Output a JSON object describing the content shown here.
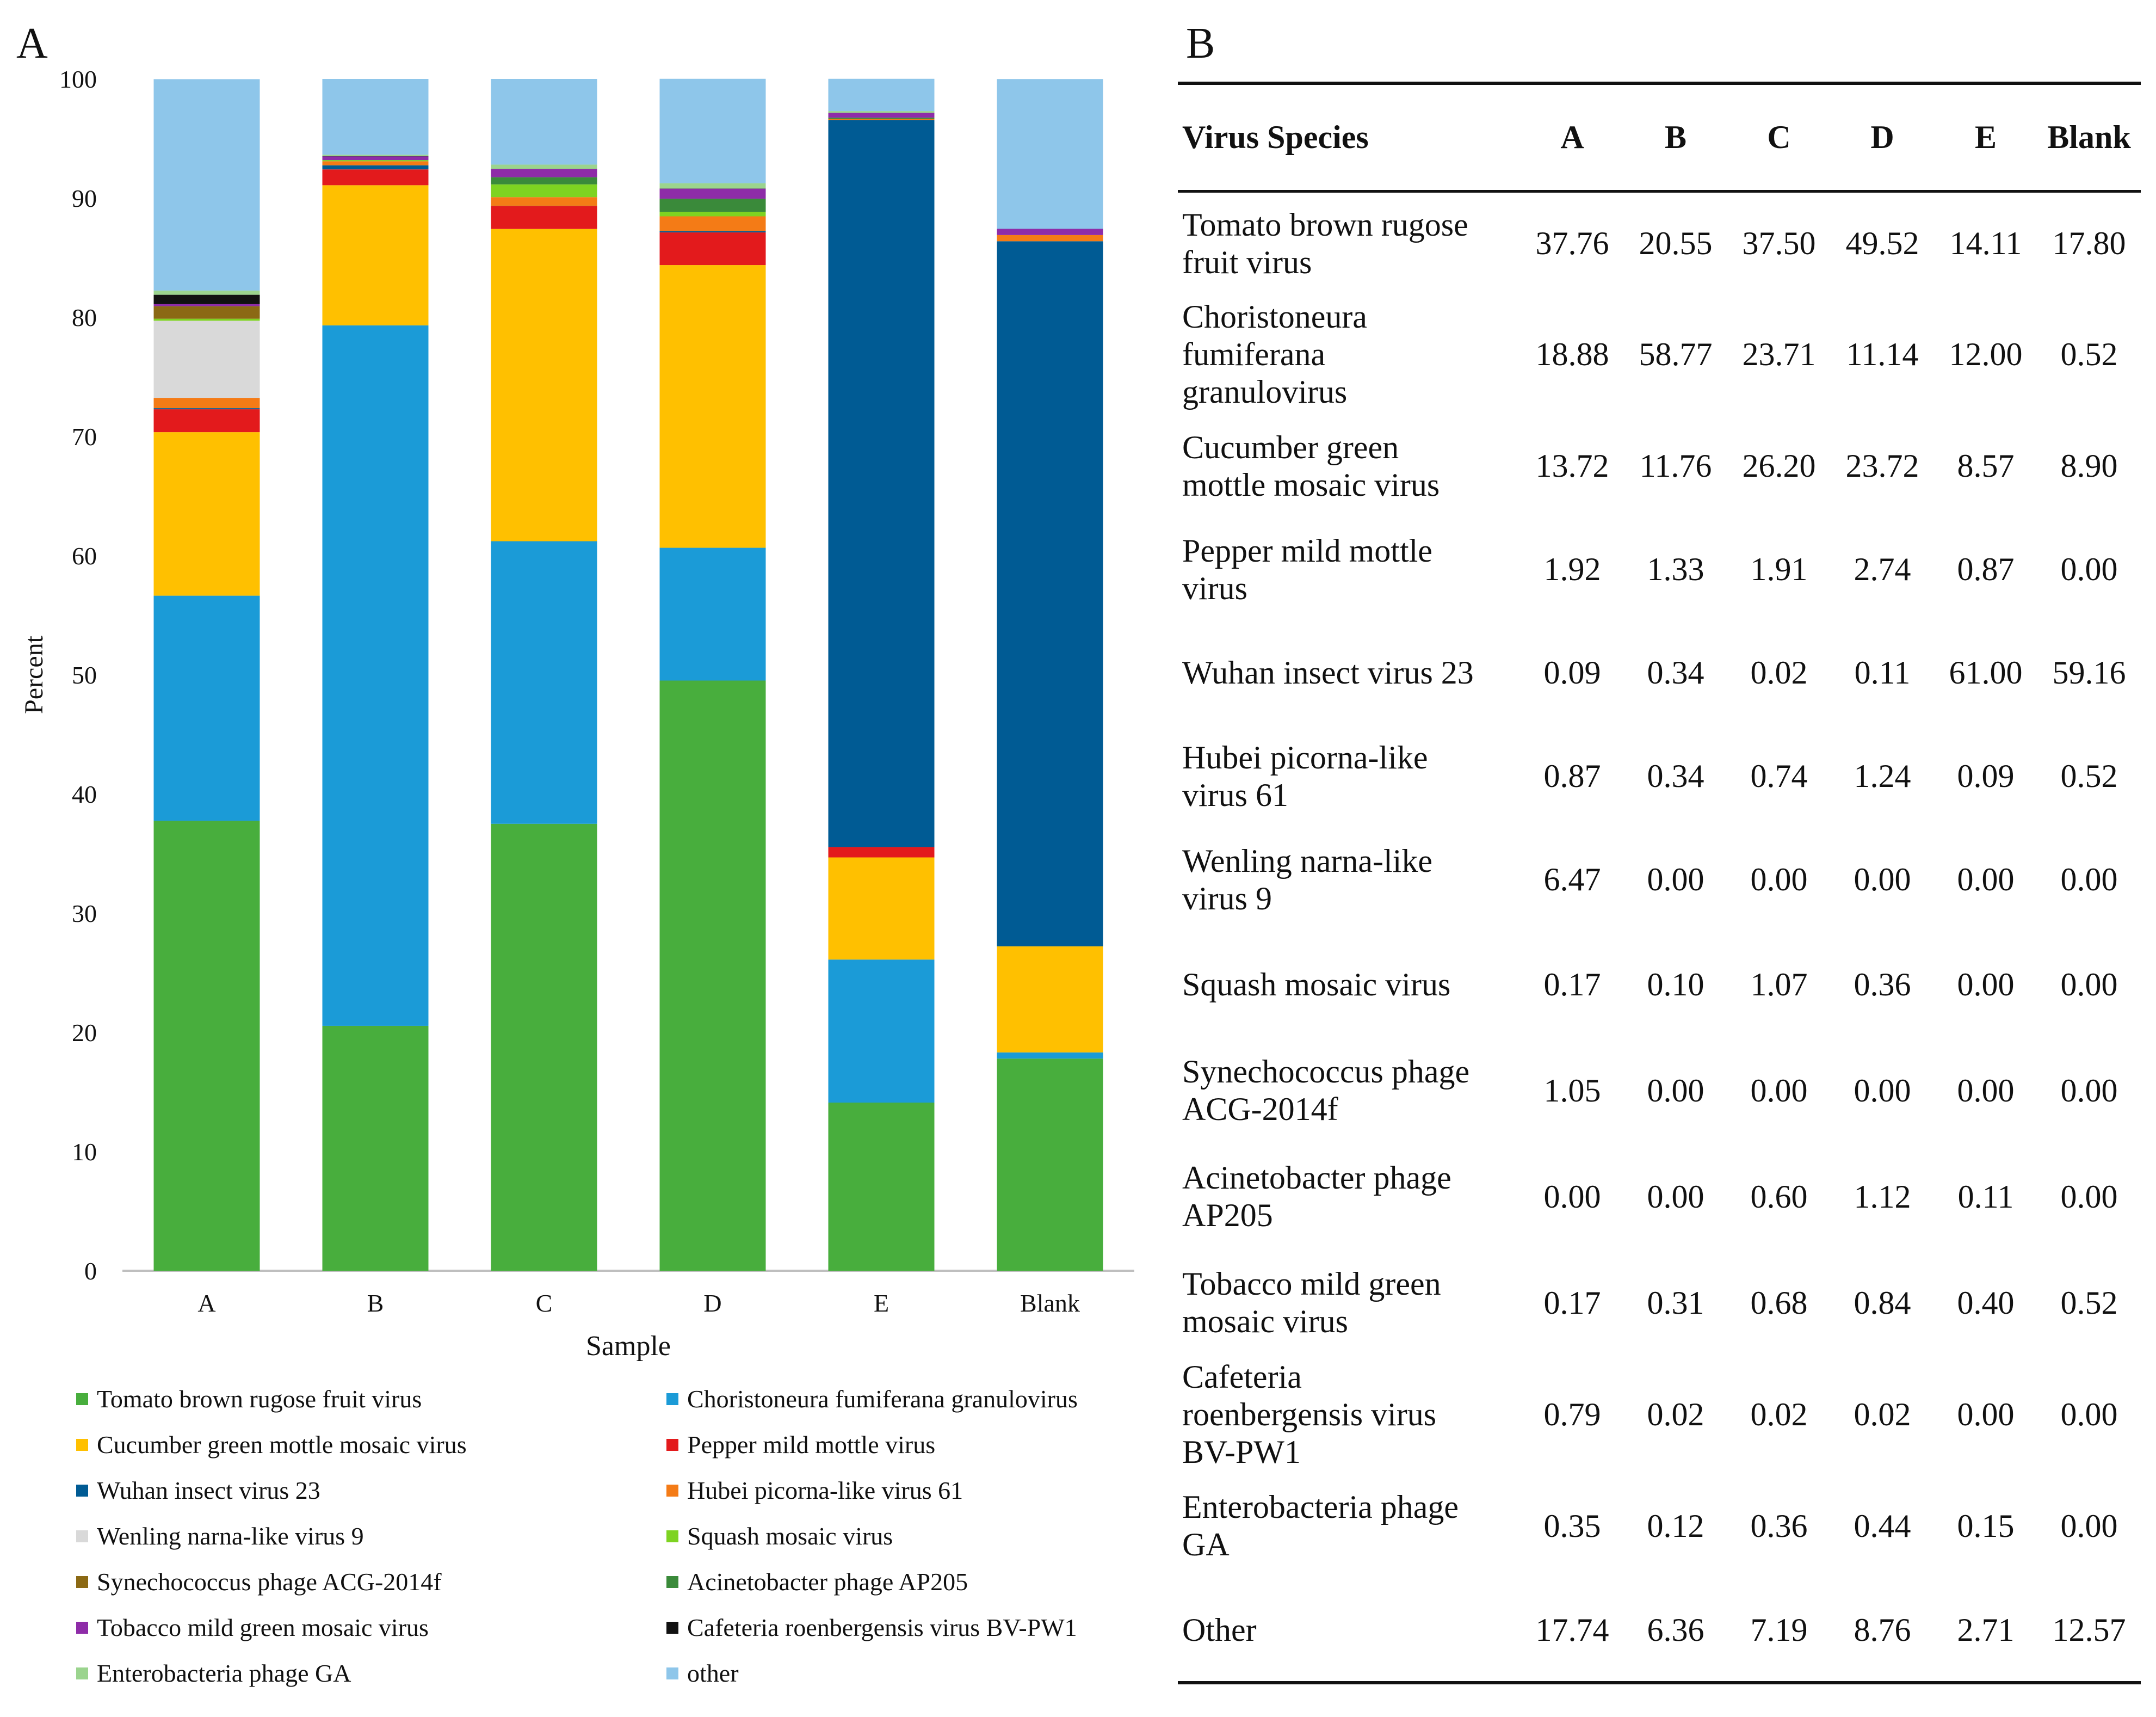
{
  "panel_a_label": "A",
  "panel_b_label": "B",
  "chart_data": {
    "type": "bar",
    "stacked": true,
    "title": "",
    "xlabel": "Sample",
    "ylabel": "Percent",
    "ylim": [
      0,
      100
    ],
    "yticks": [
      "0",
      "10",
      "20",
      "30",
      "40",
      "50",
      "60",
      "70",
      "80",
      "90",
      "100"
    ],
    "categories": [
      "A",
      "B",
      "C",
      "D",
      "E",
      "Blank"
    ],
    "series": [
      {
        "name": "Tomato brown rugose fruit virus",
        "color": "#48ae3d",
        "values": [
          37.76,
          20.55,
          37.5,
          49.52,
          14.11,
          17.8
        ]
      },
      {
        "name": "Choristoneura fumiferana granulovirus",
        "color": "#1b9bd7",
        "values": [
          18.88,
          58.77,
          23.71,
          11.14,
          12.0,
          0.52
        ]
      },
      {
        "name": "Cucumber green mottle mosaic virus",
        "color": "#ffc000",
        "values": [
          13.72,
          11.76,
          26.2,
          23.72,
          8.57,
          8.9
        ]
      },
      {
        "name": "Pepper mild mottle virus",
        "color": "#e31a1c",
        "values": [
          1.92,
          1.33,
          1.91,
          2.74,
          0.87,
          0.0
        ]
      },
      {
        "name": "Wuhan insect virus 23",
        "color": "#005b94",
        "values": [
          0.09,
          0.34,
          0.02,
          0.11,
          61.0,
          59.16
        ]
      },
      {
        "name": "Hubei picorna-like virus 61",
        "color": "#f47b16",
        "values": [
          0.87,
          0.34,
          0.74,
          1.24,
          0.09,
          0.52
        ]
      },
      {
        "name": "Wenling narna-like virus 9",
        "color": "#d9d9d9",
        "values": [
          6.47,
          0.0,
          0.0,
          0.0,
          0.0,
          0.0
        ]
      },
      {
        "name": "Squash mosaic virus",
        "color": "#7ed321",
        "values": [
          0.17,
          0.1,
          1.07,
          0.36,
          0.0,
          0.0
        ]
      },
      {
        "name": "Synechococcus phage ACG-2014f",
        "color": "#8b6914",
        "values": [
          1.05,
          0.0,
          0.0,
          0.0,
          0.0,
          0.0
        ]
      },
      {
        "name": "Acinetobacter phage AP205",
        "color": "#3a8a3a",
        "values": [
          0.0,
          0.0,
          0.6,
          1.12,
          0.11,
          0.0
        ]
      },
      {
        "name": "Tobacco mild green mosaic virus",
        "color": "#8e2ca8",
        "values": [
          0.17,
          0.31,
          0.68,
          0.84,
          0.4,
          0.52
        ]
      },
      {
        "name": "Cafeteria roenbergensis virus BV-PW1",
        "color": "#111111",
        "values": [
          0.79,
          0.02,
          0.02,
          0.02,
          0.0,
          0.0
        ]
      },
      {
        "name": "Enterobacteria phage GA",
        "color": "#9bd48e",
        "values": [
          0.35,
          0.12,
          0.36,
          0.44,
          0.15,
          0.0
        ]
      },
      {
        "name": "other",
        "color": "#8ec6ea",
        "values": [
          17.74,
          6.36,
          7.19,
          8.76,
          2.71,
          12.57
        ]
      }
    ],
    "legend_position": "bottom"
  },
  "table": {
    "headers": [
      "Virus Species",
      "A",
      "B",
      "C",
      "D",
      "E",
      "Blank"
    ],
    "rows": [
      {
        "species": "Tomato brown rugose\nfruit virus",
        "values": [
          "37.76",
          "20.55",
          "37.50",
          "49.52",
          "14.11",
          "17.80"
        ]
      },
      {
        "species": "Choristoneura\nfumiferana\ngranulovirus",
        "values": [
          "18.88",
          "58.77",
          "23.71",
          "11.14",
          "12.00",
          "0.52"
        ]
      },
      {
        "species": "Cucumber green\nmottle mosaic virus",
        "values": [
          "13.72",
          "11.76",
          "26.20",
          "23.72",
          "8.57",
          "8.90"
        ]
      },
      {
        "species": "Pepper mild mottle\nvirus",
        "values": [
          "1.92",
          "1.33",
          "1.91",
          "2.74",
          "0.87",
          "0.00"
        ]
      },
      {
        "species": "Wuhan insect virus 23",
        "values": [
          "0.09",
          "0.34",
          "0.02",
          "0.11",
          "61.00",
          "59.16"
        ]
      },
      {
        "species": "Hubei picorna-like\nvirus 61",
        "values": [
          "0.87",
          "0.34",
          "0.74",
          "1.24",
          "0.09",
          "0.52"
        ]
      },
      {
        "species": "Wenling narna-like\nvirus 9",
        "values": [
          "6.47",
          "0.00",
          "0.00",
          "0.00",
          "0.00",
          "0.00"
        ]
      },
      {
        "species": "Squash mosaic virus",
        "values": [
          "0.17",
          "0.10",
          "1.07",
          "0.36",
          "0.00",
          "0.00"
        ]
      },
      {
        "species": "Synechococcus phage\nACG-2014f",
        "values": [
          "1.05",
          "0.00",
          "0.00",
          "0.00",
          "0.00",
          "0.00"
        ]
      },
      {
        "species": "Acinetobacter phage\nAP205",
        "values": [
          "0.00",
          "0.00",
          "0.60",
          "1.12",
          "0.11",
          "0.00"
        ]
      },
      {
        "species": "Tobacco mild green\nmosaic virus",
        "values": [
          "0.17",
          "0.31",
          "0.68",
          "0.84",
          "0.40",
          "0.52"
        ]
      },
      {
        "species": "Cafeteria\nroenbergensis virus\nBV-PW1",
        "values": [
          "0.79",
          "0.02",
          "0.02",
          "0.02",
          "0.00",
          "0.00"
        ]
      },
      {
        "species": "Enterobacteria phage\nGA",
        "values": [
          "0.35",
          "0.12",
          "0.36",
          "0.44",
          "0.15",
          "0.00"
        ]
      },
      {
        "species": "Other",
        "values": [
          "17.74",
          "6.36",
          "7.19",
          "8.76",
          "2.71",
          "12.57"
        ]
      }
    ]
  }
}
